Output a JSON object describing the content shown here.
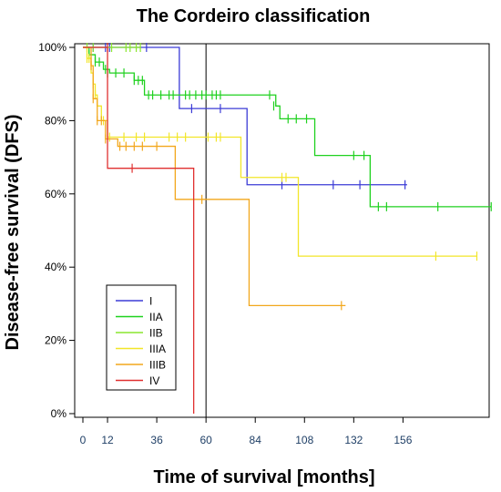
{
  "chart_data": {
    "type": "line",
    "title": "The Cordeiro classification",
    "xlabel": "Time of survival [months]",
    "ylabel": "Disease-free survival (DFS)",
    "x_ticks": [
      "0",
      "12",
      "36",
      "60",
      "84",
      "108",
      "132",
      "156"
    ],
    "x_tick_values": [
      0,
      12,
      36,
      60,
      84,
      108,
      132,
      156
    ],
    "y_ticks": [
      "0%",
      "20%",
      "40%",
      "60%",
      "80%",
      "100%"
    ],
    "y_tick_values": [
      0,
      0.2,
      0.4,
      0.6,
      0.8,
      1.0
    ],
    "xlim": [
      -4,
      198
    ],
    "ylim": [
      -0.01,
      1.01
    ],
    "reference_line_x": 60,
    "legend_position": "bottom-left",
    "grid": false,
    "series": [
      {
        "name": "I",
        "color": "#3b3bd6",
        "steps": [
          [
            0,
            1.0
          ],
          [
            47,
            0.833
          ],
          [
            80,
            0.625
          ],
          [
            158,
            0.625
          ]
        ],
        "censored": [
          [
            5,
            1.0
          ],
          [
            11,
            1.0
          ],
          [
            13,
            1.0
          ],
          [
            31,
            1.0
          ],
          [
            53,
            0.833
          ],
          [
            67,
            0.833
          ],
          [
            97,
            0.625
          ],
          [
            122,
            0.625
          ],
          [
            135,
            0.625
          ],
          [
            157,
            0.625
          ]
        ]
      },
      {
        "name": "IIA",
        "color": "#1fd11f",
        "steps": [
          [
            0,
            1.0
          ],
          [
            3,
            0.98
          ],
          [
            6,
            0.96
          ],
          [
            10,
            0.94
          ],
          [
            13,
            0.93
          ],
          [
            25,
            0.91
          ],
          [
            30,
            0.87
          ],
          [
            92,
            0.87
          ],
          [
            94,
            0.84
          ],
          [
            96,
            0.805
          ],
          [
            113,
            0.705
          ],
          [
            140,
            0.565
          ],
          [
            199,
            0.565
          ]
        ],
        "censored": [
          [
            3,
            0.98
          ],
          [
            6,
            0.96
          ],
          [
            8,
            0.96
          ],
          [
            11,
            0.94
          ],
          [
            12,
            0.93
          ],
          [
            16,
            0.93
          ],
          [
            20,
            0.93
          ],
          [
            25,
            0.91
          ],
          [
            27,
            0.91
          ],
          [
            29,
            0.91
          ],
          [
            32,
            0.87
          ],
          [
            34,
            0.87
          ],
          [
            38,
            0.87
          ],
          [
            42,
            0.87
          ],
          [
            44,
            0.87
          ],
          [
            50,
            0.87
          ],
          [
            52,
            0.87
          ],
          [
            55,
            0.87
          ],
          [
            58,
            0.87
          ],
          [
            60,
            0.87
          ],
          [
            63,
            0.87
          ],
          [
            65,
            0.87
          ],
          [
            67,
            0.87
          ],
          [
            91,
            0.87
          ],
          [
            93,
            0.84
          ],
          [
            100,
            0.805
          ],
          [
            104,
            0.805
          ],
          [
            109,
            0.805
          ],
          [
            132,
            0.705
          ],
          [
            137,
            0.705
          ],
          [
            144,
            0.565
          ],
          [
            148,
            0.565
          ],
          [
            173,
            0.565
          ],
          [
            199,
            0.565
          ]
        ]
      },
      {
        "name": "IIB",
        "color": "#8ae62e",
        "steps": [
          [
            0,
            1.0
          ],
          [
            28,
            1.0
          ]
        ],
        "censored": [
          [
            2,
            1.0
          ],
          [
            5,
            1.0
          ],
          [
            14,
            1.0
          ],
          [
            21,
            1.0
          ],
          [
            23,
            1.0
          ],
          [
            26,
            1.0
          ],
          [
            28,
            1.0
          ]
        ]
      },
      {
        "name": "IIIA",
        "color": "#f2e629",
        "steps": [
          [
            0,
            1.0
          ],
          [
            2,
            0.97
          ],
          [
            4,
            0.93
          ],
          [
            5,
            0.9
          ],
          [
            6,
            0.87
          ],
          [
            7,
            0.84
          ],
          [
            9,
            0.8
          ],
          [
            12,
            0.755
          ],
          [
            77,
            0.645
          ],
          [
            105,
            0.43
          ],
          [
            192,
            0.43
          ]
        ],
        "censored": [
          [
            2,
            0.97
          ],
          [
            3,
            0.97
          ],
          [
            5,
            0.9
          ],
          [
            6,
            0.87
          ],
          [
            10,
            0.8
          ],
          [
            13,
            0.755
          ],
          [
            20,
            0.755
          ],
          [
            26,
            0.755
          ],
          [
            30,
            0.755
          ],
          [
            42,
            0.755
          ],
          [
            46,
            0.755
          ],
          [
            50,
            0.755
          ],
          [
            61,
            0.755
          ],
          [
            65,
            0.755
          ],
          [
            67,
            0.755
          ],
          [
            97,
            0.645
          ],
          [
            99,
            0.645
          ],
          [
            172,
            0.43
          ],
          [
            192,
            0.43
          ]
        ]
      },
      {
        "name": "IIIB",
        "color": "#f2a71c",
        "steps": [
          [
            0,
            1.0
          ],
          [
            4,
            0.95
          ],
          [
            5,
            0.86
          ],
          [
            7,
            0.8
          ],
          [
            11,
            0.75
          ],
          [
            17,
            0.73
          ],
          [
            45,
            0.585
          ],
          [
            81,
            0.295
          ],
          [
            128,
            0.295
          ]
        ],
        "censored": [
          [
            4,
            0.95
          ],
          [
            5,
            0.86
          ],
          [
            7,
            0.8
          ],
          [
            9,
            0.8
          ],
          [
            11,
            0.75
          ],
          [
            18,
            0.73
          ],
          [
            21,
            0.73
          ],
          [
            25,
            0.73
          ],
          [
            29,
            0.73
          ],
          [
            36,
            0.73
          ],
          [
            58,
            0.585
          ],
          [
            126,
            0.295
          ]
        ]
      },
      {
        "name": "IV",
        "color": "#e03030",
        "steps": [
          [
            0,
            1.0
          ],
          [
            12,
            0.67
          ],
          [
            54,
            0.0
          ]
        ],
        "censored": [
          [
            12,
            1.0
          ],
          [
            24,
            0.67
          ]
        ]
      }
    ]
  }
}
